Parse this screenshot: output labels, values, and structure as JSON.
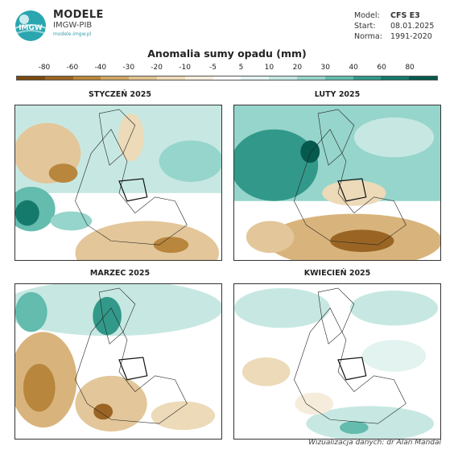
{
  "header": {
    "brand_name": "MODELE",
    "brand_org": "IMGW-PIB",
    "brand_url": "modele.imgw.pl",
    "logo_text": "IMGW"
  },
  "meta": {
    "model_label": "Model:",
    "model_value": "CFS E3",
    "start_label": "Start:",
    "start_value": "08.01.2025",
    "norm_label": "Norma:",
    "norm_value": "1991-2020"
  },
  "colorbar": {
    "title": "Anomalia sumy opadu (mm)",
    "ticks": [
      "-80",
      "-60",
      "-40",
      "-30",
      "-20",
      "-10",
      "-5",
      "5",
      "10",
      "20",
      "30",
      "40",
      "60",
      "80"
    ],
    "colors": [
      "#7a4a12",
      "#9a6524",
      "#b8863c",
      "#cfa664",
      "#e0c392",
      "#ecdab8",
      "#f5ecdc",
      "#ffffff",
      "#e2f3f0",
      "#c2e7e1",
      "#96d5cb",
      "#63bcae",
      "#32998a",
      "#157a6b",
      "#06594d"
    ]
  },
  "panels": [
    {
      "title": "STYCZEŃ 2025"
    },
    {
      "title": "LUTY 2025"
    },
    {
      "title": "MARZEC 2025"
    },
    {
      "title": "KWIECIEŃ 2025"
    }
  ],
  "credit": "Wizualizacja danych: dr Alan Mandal"
}
